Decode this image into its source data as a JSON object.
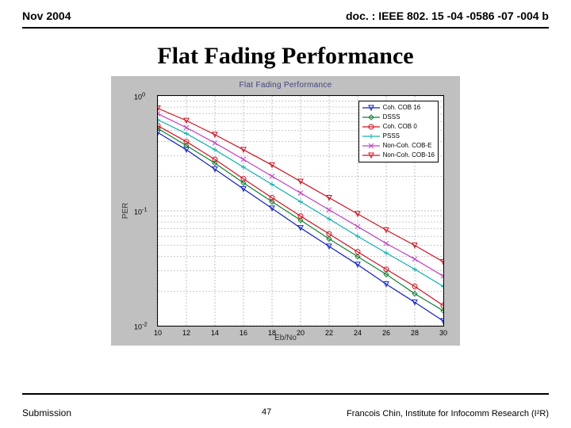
{
  "header": {
    "date": "Nov 2004",
    "docref": "doc. : IEEE 802. 15 -04 -0586 -07 -004 b"
  },
  "title": "Flat Fading Performance",
  "chart": {
    "type": "line",
    "title": "Flat Fading Performance",
    "xlabel": "Eb/No",
    "ylabel": "PER",
    "xlim": [
      10,
      30
    ],
    "xtick_step": 2,
    "xticks": [
      "10",
      "12",
      "14",
      "16",
      "18",
      "20",
      "22",
      "24",
      "26",
      "28",
      "30"
    ],
    "yscale": "log",
    "ylim_exp": [
      -2,
      0
    ],
    "yticks": [
      "10^0",
      "10^-1",
      "10^-2"
    ],
    "ytick_exp": [
      0,
      -1,
      -2
    ],
    "background_color": "#c0c0c0",
    "plot_bg": "#ffffff",
    "grid_color": "#808080",
    "grid_dash": "2,2",
    "legend": {
      "position": "upper right",
      "items": [
        {
          "label": "Coh. COB 16",
          "color": "#1020c0",
          "marker": "triangle-down"
        },
        {
          "label": "DSSS",
          "color": "#108030",
          "marker": "diamond"
        },
        {
          "label": "Coh. COB 0",
          "color": "#d01020",
          "marker": "circle"
        },
        {
          "label": "PSSS",
          "color": "#10b0b0",
          "marker": "+"
        },
        {
          "label": "Non-Coh. COB-E",
          "color": "#c040c0",
          "marker": "x"
        },
        {
          "label": "Non-Coh. COB-16",
          "color": "#d01020",
          "marker": "triangle-down"
        }
      ]
    },
    "series": [
      {
        "name": "coh-cob-16",
        "color": "#1020c0",
        "marker": "triangle-down",
        "x": [
          10,
          12,
          14,
          16,
          18,
          20,
          22,
          24,
          26,
          28,
          30
        ],
        "y": [
          0.48,
          0.34,
          0.23,
          0.155,
          0.105,
          0.071,
          0.049,
          0.034,
          0.023,
          0.016,
          0.011
        ]
      },
      {
        "name": "dsss",
        "color": "#108030",
        "marker": "diamond",
        "x": [
          10,
          12,
          14,
          16,
          18,
          20,
          22,
          24,
          26,
          28,
          30
        ],
        "y": [
          0.52,
          0.37,
          0.26,
          0.175,
          0.12,
          0.083,
          0.057,
          0.04,
          0.028,
          0.019,
          0.0135
        ]
      },
      {
        "name": "coh-cob-0",
        "color": "#d01020",
        "marker": "circle",
        "x": [
          10,
          12,
          14,
          16,
          18,
          20,
          22,
          24,
          26,
          28,
          30
        ],
        "y": [
          0.55,
          0.4,
          0.28,
          0.19,
          0.13,
          0.09,
          0.063,
          0.044,
          0.031,
          0.022,
          0.015
        ]
      },
      {
        "name": "psss",
        "color": "#10b0b0",
        "marker": "+",
        "x": [
          10,
          12,
          14,
          16,
          18,
          20,
          22,
          24,
          26,
          28,
          30
        ],
        "y": [
          0.62,
          0.47,
          0.34,
          0.24,
          0.17,
          0.12,
          0.085,
          0.06,
          0.043,
          0.031,
          0.022
        ]
      },
      {
        "name": "non-coh-cob-e",
        "color": "#c040c0",
        "marker": "x",
        "x": [
          10,
          12,
          14,
          16,
          18,
          20,
          22,
          24,
          26,
          28,
          30
        ],
        "y": [
          0.7,
          0.53,
          0.39,
          0.28,
          0.2,
          0.143,
          0.102,
          0.073,
          0.052,
          0.038,
          0.027
        ]
      },
      {
        "name": "non-coh-cob-16",
        "color": "#d01020",
        "marker": "triangle-down",
        "x": [
          10,
          12,
          14,
          16,
          18,
          20,
          22,
          24,
          26,
          28,
          30
        ],
        "y": [
          0.78,
          0.61,
          0.46,
          0.34,
          0.25,
          0.18,
          0.13,
          0.094,
          0.068,
          0.05,
          0.036
        ]
      }
    ]
  },
  "footer": {
    "left": "Submission",
    "page": "47",
    "right": "Francois Chin, Institute for Infocomm Research (I²R)"
  }
}
